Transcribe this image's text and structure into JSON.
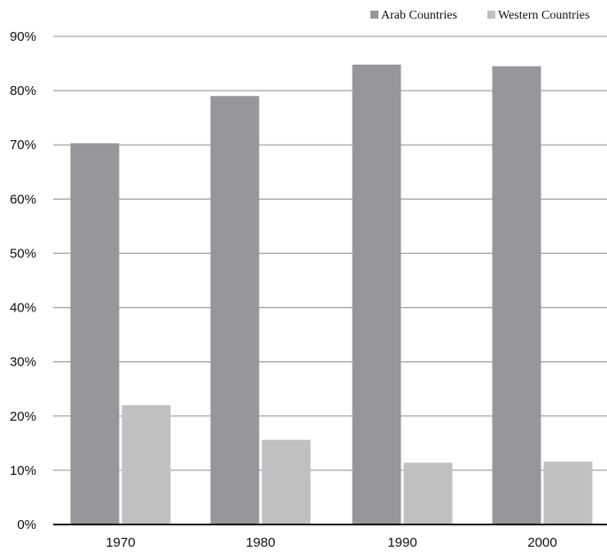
{
  "chart_data": {
    "type": "bar",
    "title": "",
    "xlabel": "",
    "ylabel": "",
    "categories": [
      "1970",
      "1980",
      "1990",
      "2000"
    ],
    "series": [
      {
        "name": "Arab Countries",
        "values": [
          70.3,
          79.0,
          84.8,
          84.5
        ],
        "color": "#97979b"
      },
      {
        "name": "Western Countries",
        "values": [
          22.0,
          15.6,
          11.4,
          11.6
        ],
        "color": "#c0c0c2"
      }
    ],
    "ylim": [
      0,
      90
    ],
    "yticks": [
      0,
      10,
      20,
      30,
      40,
      50,
      60,
      70,
      80,
      90
    ],
    "ytick_labels": [
      "0%",
      "10%",
      "20%",
      "30%",
      "40%",
      "50%",
      "60%",
      "70%",
      "80%",
      "90%"
    ],
    "grid": true,
    "legend_position": "top-right",
    "axis_color": "#111111",
    "grid_color": "#a6a6a6"
  }
}
